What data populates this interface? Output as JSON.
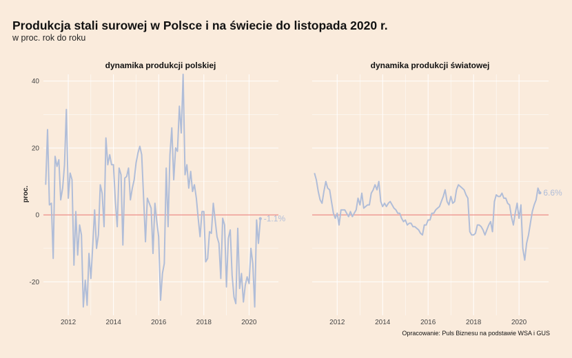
{
  "title": "Produkcja stali surowej w Polsce i na świecie do listopada 2020 r.",
  "subtitle": "w proc. rok do roku",
  "caption": "Opracowanie: Puls Biznesu na podstawie WSA i GUS",
  "colors": {
    "background": "#faebdc",
    "line": "#b0bdd8",
    "zero_line": "#e8716b",
    "grid": "#ffffff"
  },
  "chart_data": [
    {
      "type": "line",
      "facet_title": "dynamika produkcji polskiej",
      "ylabel": "proc.",
      "ylim": [
        -30,
        42
      ],
      "yticks": [
        -20,
        0,
        20,
        40
      ],
      "ytick_labels": [
        "-20",
        "0",
        "20",
        "40"
      ],
      "xlim": [
        2010.9,
        2021.3
      ],
      "xticks": [
        2012,
        2014,
        2016,
        2018,
        2020
      ],
      "xtick_labels": [
        "2012",
        "2014",
        "2016",
        "2018",
        "2020"
      ],
      "zero_line": 0,
      "end_label": "-1.1%",
      "start": [
        2011,
        1
      ],
      "values": [
        9.0,
        25.5,
        3.0,
        3.5,
        -13.0,
        17.5,
        14.5,
        16.5,
        4.5,
        8.0,
        15.0,
        31.5,
        5.0,
        12.5,
        10.5,
        -15.0,
        1.0,
        -12.0,
        -3.0,
        -6.0,
        -27.5,
        -19.5,
        -27.0,
        -11.5,
        -19.0,
        -9.0,
        1.5,
        -10.0,
        -6.0,
        9.0,
        6.5,
        -3.5,
        23.0,
        15.0,
        18.0,
        15.0,
        15.0,
        4.0,
        -3.5,
        14.0,
        12.0,
        -9.0,
        11.0,
        11.5,
        14.0,
        4.5,
        8.0,
        10.5,
        15.5,
        18.5,
        20.5,
        18.0,
        5.0,
        -8.0,
        5.0,
        3.5,
        2.0,
        -11.5,
        3.5,
        -2.0,
        -6.5,
        -25.5,
        -17.5,
        -14.5,
        14.0,
        -3.5,
        18.0,
        26.0,
        10.5,
        20.0,
        19.0,
        32.5,
        24.5,
        42.0,
        12.0,
        15.0,
        8.0,
        13.0,
        7.0,
        9.0,
        5.0,
        -1.0,
        -6.5,
        1.0,
        1.0,
        -14.0,
        -13.0,
        -5.0,
        -5.5,
        3.5,
        -1.5,
        -6.5,
        -8.5,
        -19.0,
        -1.0,
        -3.0,
        -21.5,
        -7.0,
        -4.5,
        -18.0,
        -24.5,
        -26.5,
        -4.0,
        -22.0,
        -17.5,
        -26.0,
        -21.0,
        -18.5,
        -20.5,
        -10.0,
        -14.5,
        -27.5,
        -1.5,
        -8.5,
        -1.1
      ]
    },
    {
      "type": "line",
      "facet_title": "dynamika produkcji światowej",
      "ylim": [
        -30,
        42
      ],
      "xlim": [
        2010.9,
        2021.3
      ],
      "xticks": [
        2012,
        2014,
        2016,
        2018,
        2020
      ],
      "xtick_labels": [
        "2012",
        "2014",
        "2016",
        "2018",
        "2020"
      ],
      "zero_line": 0,
      "end_label": "6.6%",
      "start": [
        2011,
        1
      ],
      "values": [
        12.5,
        10.5,
        7.0,
        4.5,
        3.5,
        7.0,
        10.0,
        8.0,
        7.5,
        4.0,
        0.5,
        -1.0,
        0.5,
        -3.0,
        1.5,
        1.5,
        1.5,
        0.5,
        -0.5,
        1.0,
        -0.5,
        0.5,
        1.5,
        5.0,
        3.0,
        6.5,
        2.0,
        2.5,
        3.0,
        3.0,
        6.5,
        7.5,
        9.0,
        7.5,
        10.0,
        4.0,
        2.5,
        3.5,
        2.5,
        3.5,
        4.0,
        3.0,
        2.0,
        1.5,
        0.5,
        0.5,
        -1.0,
        -2.0,
        -1.5,
        -3.0,
        -2.5,
        -2.5,
        -3.5,
        -3.5,
        -4.0,
        -4.5,
        -5.5,
        -6.0,
        -3.0,
        -3.0,
        -1.5,
        -1.5,
        0.5,
        0.5,
        1.5,
        2.0,
        2.5,
        4.0,
        5.5,
        7.5,
        4.0,
        3.0,
        5.5,
        3.5,
        4.0,
        7.5,
        9.0,
        8.5,
        8.0,
        7.5,
        6.0,
        5.0,
        -5.0,
        -6.0,
        -6.0,
        -5.5,
        -3.0,
        -3.0,
        -3.5,
        -4.5,
        -6.0,
        -4.5,
        -3.0,
        -2.0,
        -5.0,
        4.0,
        6.0,
        5.5,
        5.5,
        6.5,
        5.0,
        5.0,
        3.5,
        3.0,
        -0.5,
        -3.0,
        0.5,
        3.5,
        -1.0,
        3.0,
        -10.0,
        -13.5,
        -8.5,
        -6.0,
        -2.5,
        1.0,
        3.0,
        4.5,
        8.0,
        6.6
      ]
    }
  ]
}
